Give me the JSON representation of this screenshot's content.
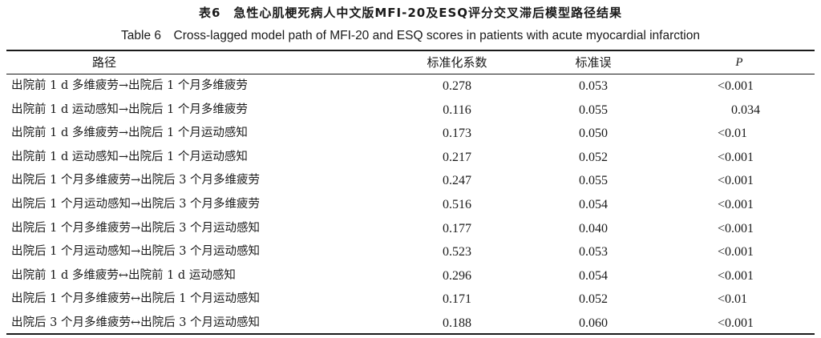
{
  "table": {
    "caption_cn": "表6　急性心肌梗死病人中文版MFI-20及ESQ评分交叉滞后模型路径结果",
    "caption_en": "Table 6　Cross-lagged model path of MFI-20 and ESQ scores in patients with acute myocardial infarction",
    "headers": {
      "path": "路径",
      "coef": "标准化系数",
      "se": "标准误",
      "p": "P"
    },
    "rows": [
      {
        "path": "出院前 1 d 多维疲劳→出院后 1 个月多维疲劳",
        "coef": "0.278",
        "se": "0.053",
        "p": "<0.001"
      },
      {
        "path": "出院前 1 d 运动感知→出院后 1 个月多维疲劳",
        "coef": "0.116",
        "se": "0.055",
        "p": "0.034"
      },
      {
        "path": "出院前 1 d 多维疲劳→出院后 1 个月运动感知",
        "coef": "0.173",
        "se": "0.050",
        "p": "<0.01"
      },
      {
        "path": "出院前 1 d 运动感知→出院后 1 个月运动感知",
        "coef": "0.217",
        "se": "0.052",
        "p": "<0.001"
      },
      {
        "path": "出院后 1 个月多维疲劳→出院后 3 个月多维疲劳",
        "coef": "0.247",
        "se": "0.055",
        "p": "<0.001"
      },
      {
        "path": "出院后 1 个月运动感知→出院后 3 个月多维疲劳",
        "coef": "0.516",
        "se": "0.054",
        "p": "<0.001"
      },
      {
        "path": "出院后 1 个月多维疲劳→出院后 3 个月运动感知",
        "coef": "0.177",
        "se": "0.040",
        "p": "<0.001"
      },
      {
        "path": "出院后 1 个月运动感知→出院后 3 个月运动感知",
        "coef": "0.523",
        "se": "0.053",
        "p": "<0.001"
      },
      {
        "path": "出院前 1 d 多维疲劳↔出院前 1 d 运动感知",
        "coef": "0.296",
        "se": "0.054",
        "p": "<0.001"
      },
      {
        "path": "出院后 1 个月多维疲劳↔出院后 1 个月运动感知",
        "coef": "0.171",
        "se": "0.052",
        "p": "<0.01"
      },
      {
        "path": "出院后 3 个月多维疲劳↔出院后 3 个月运动感知",
        "coef": "0.188",
        "se": "0.060",
        "p": "<0.001"
      }
    ]
  }
}
